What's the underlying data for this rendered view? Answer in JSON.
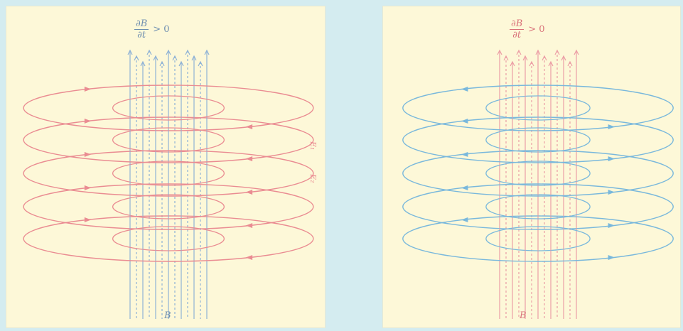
{
  "colors": {
    "background": "#d4ecf0",
    "panel": "#fdf8d8",
    "electric_field_left": "#ea8c92",
    "electric_field_right": "#79b8dc",
    "magnetic_field_left": "#8fb2d6",
    "magnetic_field_right": "#ec9fa6",
    "label_left": "#6f8fb0",
    "label_right": "#d9727a"
  },
  "panels": [
    {
      "formula": {
        "numerator": "∂B",
        "denominator": "∂t",
        "relation": "> 0"
      },
      "field_label": "B",
      "side_labels": [
        "E₁",
        "E₂"
      ],
      "ring_color_key": "electric_field_left",
      "line_color_key": "magnetic_field_left"
    },
    {
      "formula": {
        "numerator": "∂B",
        "denominator": "∂t",
        "relation": "> 0"
      },
      "field_label": "B",
      "side_labels": [],
      "ring_color_key": "electric_field_right",
      "line_color_key": "magnetic_field_right"
    }
  ]
}
